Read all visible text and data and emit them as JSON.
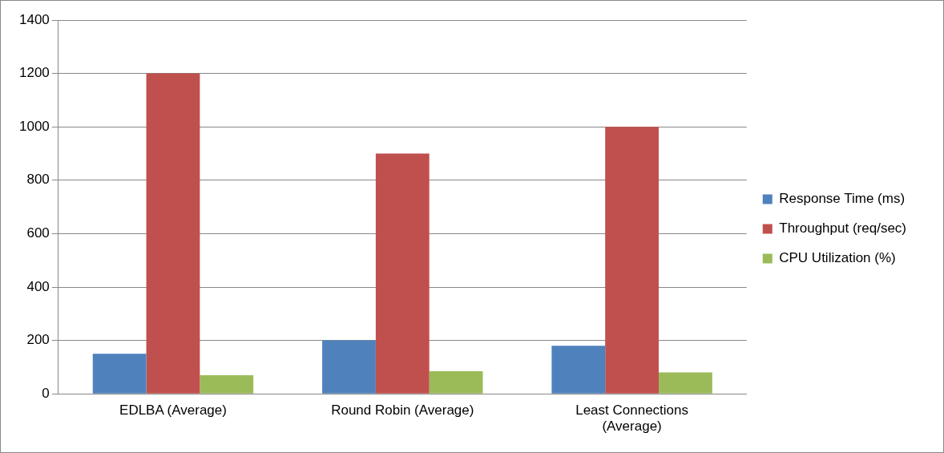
{
  "chart_data": {
    "type": "bar",
    "categories": [
      "EDLBA (Average)",
      "Round Robin (Average)",
      "Least Connections (Average)"
    ],
    "series": [
      {
        "name": "Response Time (ms)",
        "color": "#4f81bd",
        "values": [
          150,
          200,
          180
        ]
      },
      {
        "name": "Throughput (req/sec)",
        "color": "#c0504d",
        "values": [
          1200,
          900,
          1000
        ]
      },
      {
        "name": "CPU Utilization (%)",
        "color": "#9bbb59",
        "values": [
          70,
          85,
          80
        ]
      }
    ],
    "ylim": [
      0,
      1400
    ],
    "yticks": [
      0,
      200,
      400,
      600,
      800,
      1000,
      1200,
      1400
    ],
    "grid": "y",
    "legend": "right"
  }
}
